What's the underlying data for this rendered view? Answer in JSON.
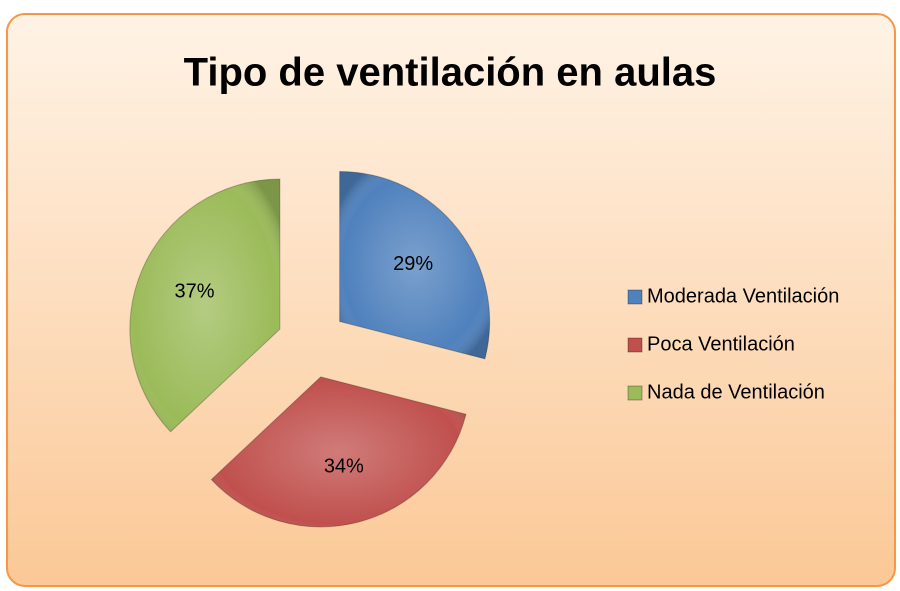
{
  "chart_data": {
    "type": "pie",
    "title": "Tipo de ventilación en aulas",
    "categories": [
      "Moderada Ventilación",
      "Poca Ventilación",
      "Nada de Ventilación"
    ],
    "values": [
      29,
      34,
      37
    ],
    "value_labels": [
      "29%",
      "34%",
      "37%"
    ],
    "colors": [
      "#4f81bd",
      "#c0504d",
      "#9bbb59"
    ],
    "legend": "right"
  }
}
